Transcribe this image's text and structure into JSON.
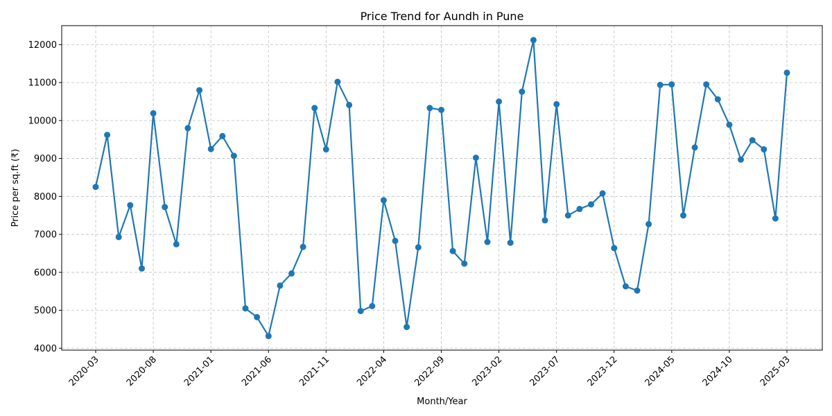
{
  "chart_data": {
    "type": "line",
    "title": "Price Trend for Aundh in Pune",
    "xlabel": "Month/Year",
    "ylabel": "Price per sq.ft (₹)",
    "ylim": [
      3950,
      12500
    ],
    "y_ticks": [
      4000,
      5000,
      6000,
      7000,
      8000,
      9000,
      10000,
      11000,
      12000
    ],
    "x_tick_labels": [
      "2020-03",
      "2020-08",
      "2021-01",
      "2021-06",
      "2021-11",
      "2022-04",
      "2022-09",
      "2023-02",
      "2023-07",
      "2023-12",
      "2024-05",
      "2024-10",
      "2025-03"
    ],
    "grid": true,
    "color": "#1f77b4",
    "series": [
      {
        "values": [
          8250,
          9620,
          6930,
          7770,
          6100,
          10190,
          7720,
          6740,
          9800,
          10800,
          9250,
          9590,
          9070,
          5050,
          4820,
          4320,
          5650,
          5970,
          6670,
          10330,
          9240,
          11020,
          10410,
          4980,
          5110,
          7900,
          6830,
          4560,
          6660,
          10330,
          10280,
          6560,
          6230,
          9020,
          6800,
          10500,
          6780,
          10760,
          12120,
          7370,
          10430,
          7500,
          7670,
          7790,
          8080,
          6640,
          5630,
          5520,
          7270,
          10940,
          10950,
          7500,
          9290,
          10950,
          10560,
          9890,
          8970,
          9480,
          9240,
          7420,
          11260
        ]
      }
    ]
  }
}
